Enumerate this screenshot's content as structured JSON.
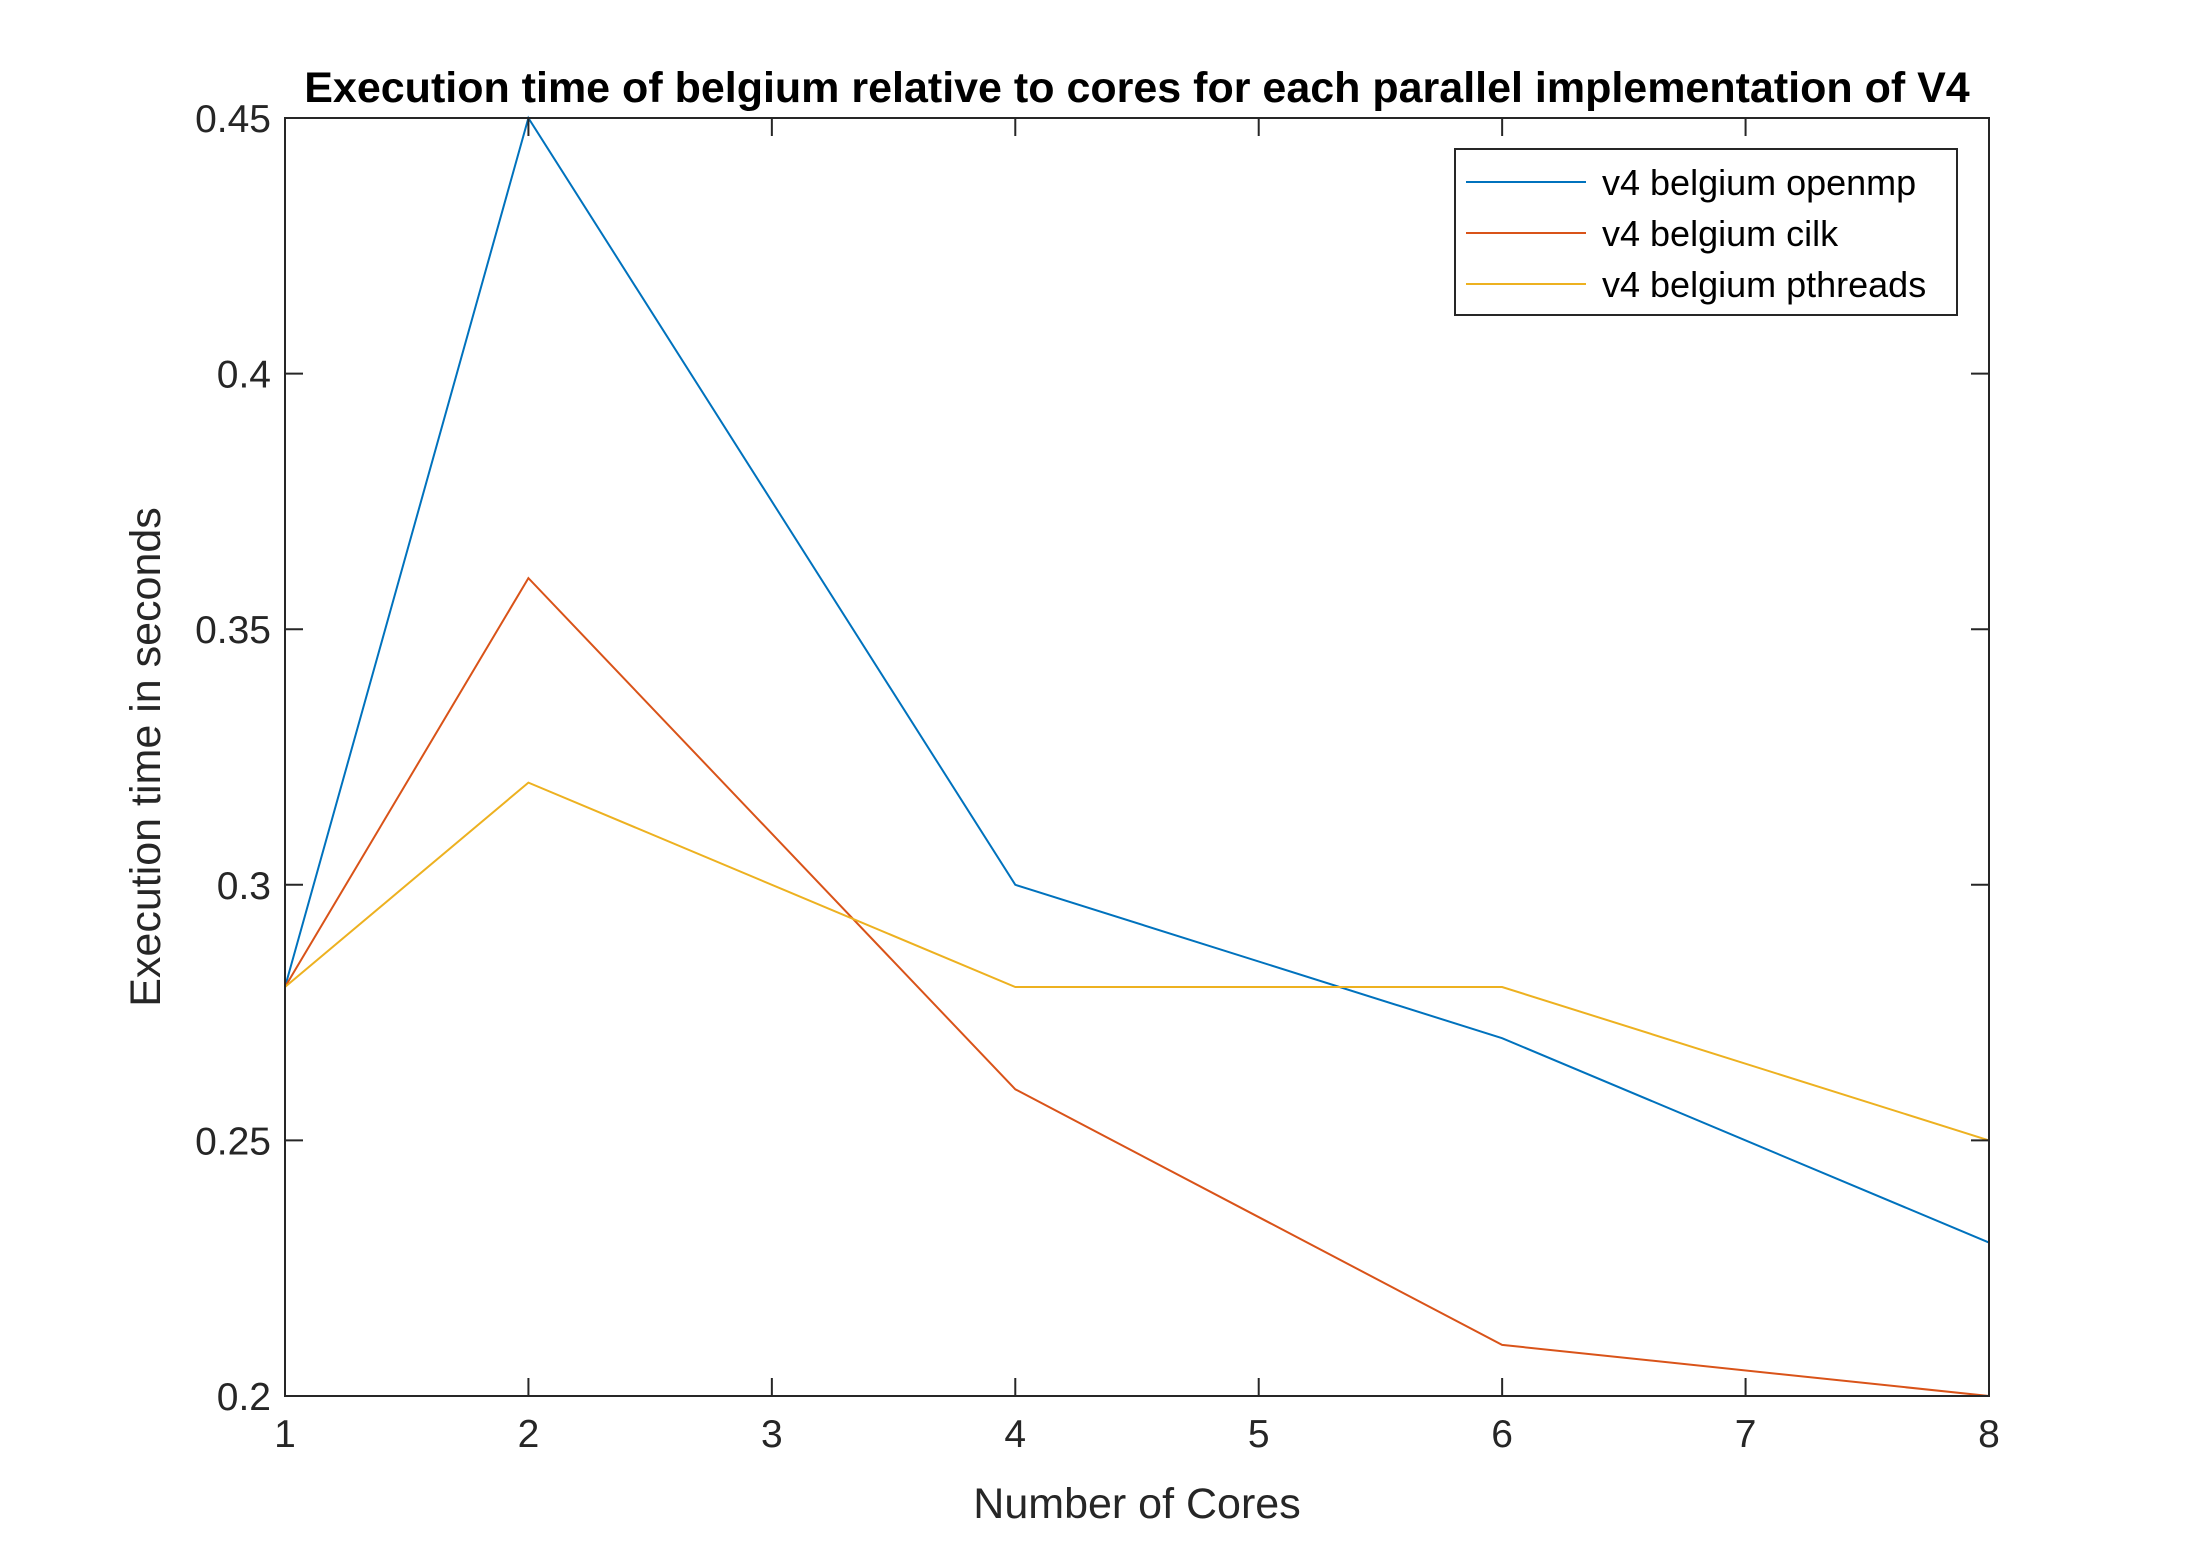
{
  "chart_data": {
    "type": "line",
    "title": "Execution time of belgium relative to cores for each parallel implementation of V4",
    "xlabel": "Number of Cores",
    "ylabel": "Execution time in seconds",
    "xlim": [
      1,
      8
    ],
    "ylim": [
      0.2,
      0.45
    ],
    "xticks": [
      1,
      2,
      3,
      4,
      5,
      6,
      7,
      8
    ],
    "xtick_labels": [
      "1",
      "2",
      "3",
      "4",
      "5",
      "6",
      "7",
      "8"
    ],
    "yticks": [
      0.2,
      0.25,
      0.3,
      0.35,
      0.4,
      0.45
    ],
    "ytick_labels": [
      "0.2",
      "0.25",
      "0.3",
      "0.35",
      "0.4",
      "0.45"
    ],
    "grid": false,
    "legend_position": "top-right",
    "x": [
      1,
      2,
      4,
      6,
      8
    ],
    "series": [
      {
        "name": "v4 belgium openmp",
        "color": "#0072BD",
        "values": [
          0.28,
          0.45,
          0.3,
          0.27,
          0.23
        ]
      },
      {
        "name": "v4 belgium cilk",
        "color": "#D95319",
        "values": [
          0.28,
          0.36,
          0.26,
          0.21,
          0.2
        ]
      },
      {
        "name": "v4 belgium pthreads",
        "color": "#EDB120",
        "values": [
          0.28,
          0.32,
          0.28,
          0.28,
          0.25
        ]
      }
    ]
  }
}
